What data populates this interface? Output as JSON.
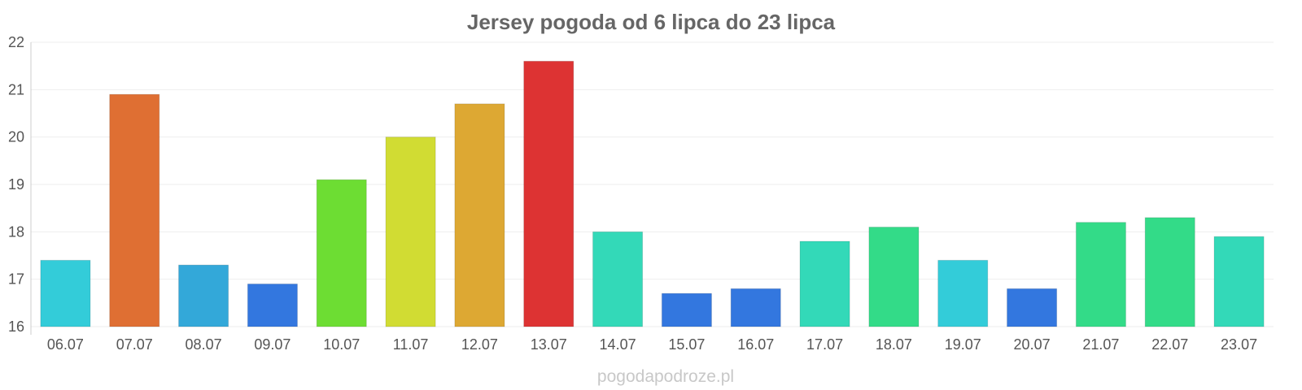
{
  "chart_data": {
    "type": "bar",
    "title": "Jersey pogoda od 6 lipca do 23 lipca",
    "xlabel": "",
    "ylabel": "",
    "categories": [
      "06.07",
      "07.07",
      "08.07",
      "09.07",
      "10.07",
      "11.07",
      "12.07",
      "13.07",
      "14.07",
      "15.07",
      "16.07",
      "17.07",
      "18.07",
      "19.07",
      "20.07",
      "21.07",
      "22.07",
      "23.07"
    ],
    "values": [
      17.4,
      20.9,
      17.3,
      16.9,
      19.1,
      20.0,
      20.7,
      21.6,
      18.0,
      16.7,
      16.8,
      17.8,
      18.1,
      17.4,
      16.8,
      18.2,
      18.3,
      17.9
    ],
    "colors": [
      "#33ccd9",
      "#df6f33",
      "#33a8d9",
      "#3377df",
      "#6ddd33",
      "#d1dc33",
      "#dda833",
      "#dd3333",
      "#33d9b8",
      "#3377df",
      "#3377df",
      "#33d9b8",
      "#33db88",
      "#33ccd9",
      "#3377df",
      "#33db88",
      "#33db88",
      "#33d9b8"
    ],
    "yticks": [
      "16",
      "17",
      "18",
      "19",
      "20",
      "21",
      "22"
    ],
    "ylim": [
      16,
      22
    ],
    "grid": true,
    "legend": "none"
  },
  "footer": {
    "watermark": "pogodapodroze.pl"
  }
}
